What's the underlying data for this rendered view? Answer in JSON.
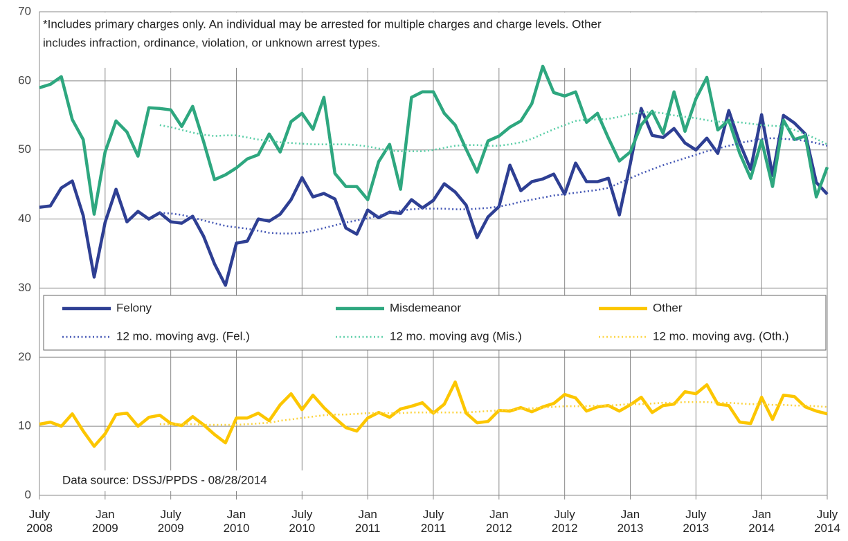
{
  "chart_data": {
    "type": "line",
    "note": [
      "*Includes primary charges only. An individual may be arrested for multiple charges and charge levels.  Other",
      "includes infraction, ordinance, violation, or unknown arrest types."
    ],
    "source": "Data source: DSSJ/PPDS - 08/28/2014",
    "categories": [
      "July 2008",
      null,
      null,
      null,
      null,
      null,
      "Jan 2009",
      null,
      null,
      null,
      null,
      null,
      "July 2009",
      null,
      null,
      null,
      null,
      null,
      "Jan 2010",
      null,
      null,
      null,
      null,
      null,
      "July 2010",
      null,
      null,
      null,
      null,
      null,
      "Jan 2011",
      null,
      null,
      null,
      null,
      null,
      "July 2011",
      null,
      null,
      null,
      null,
      null,
      "Jan 2012",
      null,
      null,
      null,
      null,
      null,
      "July 2012",
      null,
      null,
      null,
      null,
      null,
      "Jan 2013",
      null,
      null,
      null,
      null,
      null,
      "July 2013",
      null,
      null,
      null,
      null,
      null,
      "Jan 2014",
      null,
      null,
      null,
      null,
      null,
      "July 2014"
    ],
    "ylim": [
      0,
      70
    ],
    "yticks": [
      0,
      10,
      20,
      30,
      40,
      50,
      60,
      70
    ],
    "grid": true,
    "series": [
      {
        "name": "Felony",
        "color": "#2e3f93",
        "dashed": false,
        "values": [
          41.7,
          41.9,
          44.5,
          45.5,
          40.5,
          31.6,
          39.5,
          44.3,
          39.6,
          41.1,
          40.0,
          40.9,
          39.6,
          39.4,
          40.4,
          37.5,
          33.5,
          30.4,
          36.5,
          36.8,
          40.0,
          39.7,
          40.7,
          42.8,
          46.0,
          43.2,
          43.7,
          42.9,
          38.7,
          37.8,
          41.3,
          40.2,
          41.0,
          40.8,
          42.8,
          41.6,
          42.7,
          45.1,
          43.9,
          42.0,
          37.3,
          40.3,
          41.8,
          47.8,
          44.1,
          45.4,
          45.8,
          46.5,
          43.6,
          48.1,
          45.4,
          45.4,
          45.9,
          40.6,
          48.0,
          56.0,
          52.1,
          51.8,
          53.1,
          51.0,
          50.0,
          51.7,
          49.5,
          55.7,
          51.0,
          47.2,
          55.1,
          46.3,
          55.0,
          53.9,
          52.3,
          45.3,
          43.6
        ]
      },
      {
        "name": "Misdemeanor",
        "color": "#2ea77f",
        "dashed": false,
        "values": [
          59.0,
          59.5,
          60.6,
          54.4,
          51.5,
          40.7,
          49.7,
          54.2,
          52.6,
          49.1,
          56.1,
          56.0,
          55.8,
          53.4,
          56.3,
          51.2,
          45.7,
          46.4,
          47.4,
          48.7,
          49.3,
          52.3,
          49.7,
          54.1,
          55.3,
          53.0,
          57.6,
          46.6,
          44.7,
          44.7,
          42.8,
          48.3,
          50.8,
          44.3,
          57.6,
          58.4,
          58.4,
          55.3,
          53.6,
          50.1,
          46.8,
          51.3,
          52.0,
          53.3,
          54.2,
          56.7,
          62.1,
          58.3,
          57.8,
          58.4,
          54.0,
          55.3,
          51.7,
          48.4,
          49.7,
          53.6,
          55.6,
          52.4,
          58.4,
          52.7,
          57.4,
          60.5,
          52.9,
          54.3,
          49.5,
          45.9,
          51.4,
          44.7,
          54.3,
          51.5,
          52.0,
          43.2,
          47.5
        ]
      },
      {
        "name": "Other",
        "color": "#fcc600",
        "dashed": false,
        "values": [
          10.3,
          10.6,
          10.0,
          11.8,
          9.3,
          7.1,
          8.9,
          11.7,
          11.9,
          10.0,
          11.3,
          11.6,
          10.4,
          10.1,
          11.4,
          10.2,
          8.8,
          7.6,
          11.2,
          11.2,
          11.9,
          10.8,
          13.1,
          14.7,
          12.4,
          14.5,
          12.7,
          11.2,
          9.8,
          9.3,
          11.2,
          12.0,
          11.3,
          12.5,
          12.9,
          13.4,
          11.9,
          13.2,
          16.4,
          11.9,
          10.5,
          10.7,
          12.3,
          12.2,
          12.7,
          12.1,
          12.8,
          13.3,
          14.6,
          14.1,
          12.2,
          12.8,
          13.0,
          12.2,
          13.1,
          14.2,
          12.0,
          13.0,
          13.2,
          15.0,
          14.7,
          16.0,
          13.2,
          13.0,
          10.6,
          10.4,
          14.2,
          11.0,
          14.5,
          14.3,
          12.8,
          12.2,
          11.8
        ]
      },
      {
        "name": "12 mo. moving avg. (Fel.)",
        "color": "#4457b5",
        "dashed": true,
        "values": [
          null,
          null,
          null,
          null,
          null,
          null,
          null,
          null,
          null,
          null,
          null,
          40.9,
          40.8,
          40.6,
          40.2,
          39.8,
          39.4,
          39.0,
          38.8,
          38.6,
          38.3,
          38.0,
          37.9,
          37.9,
          38.0,
          38.3,
          38.7,
          39.1,
          39.5,
          39.8,
          40.1,
          40.5,
          40.9,
          41.2,
          41.4,
          41.5,
          41.5,
          41.5,
          41.4,
          41.4,
          41.5,
          41.6,
          41.8,
          42.1,
          42.5,
          42.8,
          43.1,
          43.4,
          43.6,
          43.8,
          44.0,
          44.2,
          44.5,
          45.2,
          45.9,
          46.6,
          47.2,
          47.8,
          48.3,
          48.8,
          49.3,
          49.8,
          50.2,
          50.6,
          51.0,
          51.3,
          51.6,
          51.7,
          51.6,
          51.5,
          51.3,
          51.0,
          50.6
        ]
      },
      {
        "name": "12 mo. moving avg (Mis.)",
        "color": "#5ccfa8",
        "dashed": true,
        "values": [
          null,
          null,
          null,
          null,
          null,
          null,
          null,
          null,
          null,
          null,
          null,
          53.6,
          53.3,
          52.9,
          52.5,
          52.2,
          52.0,
          52.1,
          52.1,
          51.8,
          51.5,
          51.3,
          51.1,
          51.0,
          50.9,
          50.8,
          50.8,
          50.8,
          50.8,
          50.7,
          50.5,
          50.2,
          49.9,
          49.8,
          49.8,
          49.8,
          50.0,
          50.3,
          50.6,
          50.7,
          50.7,
          50.6,
          50.6,
          50.8,
          51.1,
          51.6,
          52.3,
          53.0,
          53.6,
          54.2,
          54.4,
          54.4,
          54.5,
          54.8,
          55.2,
          55.4,
          55.5,
          55.3,
          55.0,
          54.8,
          54.6,
          54.3,
          54.1,
          54.0,
          54.0,
          53.8,
          53.6,
          53.5,
          53.4,
          52.9,
          52.3,
          51.6,
          50.8
        ]
      },
      {
        "name": "12 mo. moving avg. (Oth.)",
        "color": "#fcd440",
        "dashed": true,
        "values": [
          null,
          null,
          null,
          null,
          null,
          null,
          null,
          null,
          null,
          null,
          null,
          10.3,
          10.3,
          10.3,
          10.3,
          10.2,
          10.2,
          10.2,
          10.2,
          10.3,
          10.4,
          10.5,
          10.8,
          11.0,
          11.2,
          11.4,
          11.6,
          11.7,
          11.7,
          11.8,
          11.9,
          11.9,
          11.9,
          11.9,
          12.0,
          12.0,
          12.0,
          12.0,
          12.0,
          12.0,
          12.1,
          12.2,
          12.3,
          12.4,
          12.5,
          12.6,
          12.7,
          12.8,
          12.9,
          12.9,
          12.9,
          13.0,
          13.0,
          13.1,
          13.2,
          13.2,
          13.3,
          13.4,
          13.4,
          13.5,
          13.5,
          13.5,
          13.4,
          13.4,
          13.3,
          13.2,
          13.2,
          13.1,
          13.1,
          13.0,
          13.0,
          12.9,
          12.8
        ]
      }
    ]
  }
}
